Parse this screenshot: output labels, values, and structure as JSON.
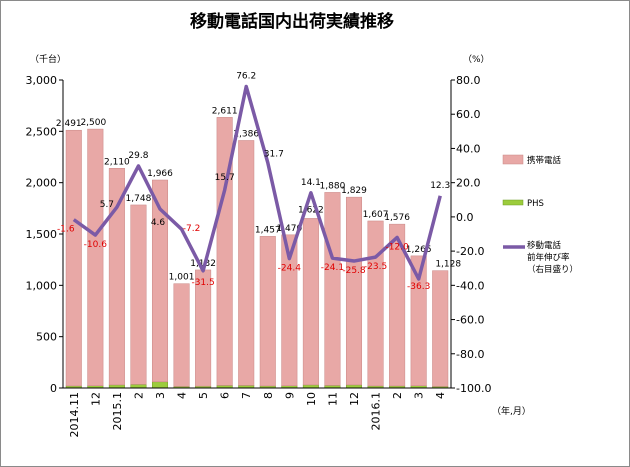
{
  "chart_data": {
    "type": "bar",
    "title": "移動電話国内出荷実績推移",
    "y_left_unit": "（千台）",
    "y_right_unit": "（%）",
    "x_unit": "（年,月）",
    "categories": [
      "2014.11",
      "12",
      "2015.1",
      "2",
      "3",
      "4",
      "5",
      "6",
      "7",
      "8",
      "9",
      "10",
      "11",
      "12",
      "2016.1",
      "2",
      "3",
      "4"
    ],
    "ylim_left": [
      0,
      3000
    ],
    "ylim_right": [
      -100,
      80
    ],
    "left_ticks": [
      "0",
      "500",
      "1,000",
      "1,500",
      "2,000",
      "2,500",
      "3,000"
    ],
    "right_ticks": [
      "-100.0",
      "-80.0",
      "-60.0",
      "-40.0",
      "-20.0",
      "0.0",
      "20.0",
      "40.0",
      "60.0",
      "80.0"
    ],
    "stacked": true,
    "series": [
      {
        "name": "携帯電話",
        "type": "bar",
        "axis": "left",
        "color": "#e8a8a6",
        "values": [
          2491,
          2500,
          2110,
          1748,
          1966,
          1001,
          1132,
          2611,
          2386,
          1457,
          1470,
          1622,
          1880,
          1829,
          1607,
          1576,
          1265,
          1128
        ],
        "labels": [
          "2,491",
          "2,500",
          "2,110",
          "1,748",
          "1,966",
          "1,001",
          "1,132",
          "2,611",
          "2,386",
          "1,457",
          "1,470",
          "1,622",
          "1,880",
          "1,829",
          "1,607",
          "1,576",
          "1,265",
          "1,128"
        ]
      },
      {
        "name": "PHS",
        "type": "bar",
        "axis": "left",
        "color": "#9ccc3c",
        "values": [
          20,
          22,
          30,
          35,
          60,
          15,
          18,
          25,
          25,
          20,
          22,
          30,
          25,
          30,
          20,
          20,
          22,
          15
        ]
      },
      {
        "name": "移動電話\n前年伸び率\n（右目盛り）",
        "type": "line",
        "axis": "right",
        "color": "#7b5aa6",
        "values": [
          -1.6,
          -10.6,
          5.7,
          29.8,
          4.6,
          -7.2,
          -31.5,
          15.7,
          76.2,
          31.7,
          -24.4,
          14.1,
          -24.1,
          -25.8,
          -23.5,
          -12.0,
          -36.3,
          12.3
        ],
        "labels": [
          "-1.6",
          "-10.6",
          "5.7",
          "29.8",
          "4.6",
          "-7.2",
          "-31.5",
          "15.7",
          "76.2",
          "31.7",
          "-24.4",
          "14.1",
          "-24.1",
          "-25.8",
          "-23.5",
          "-12.0",
          "-36.3",
          "12.3"
        ]
      }
    ],
    "grid": false,
    "legend_position": "right"
  }
}
